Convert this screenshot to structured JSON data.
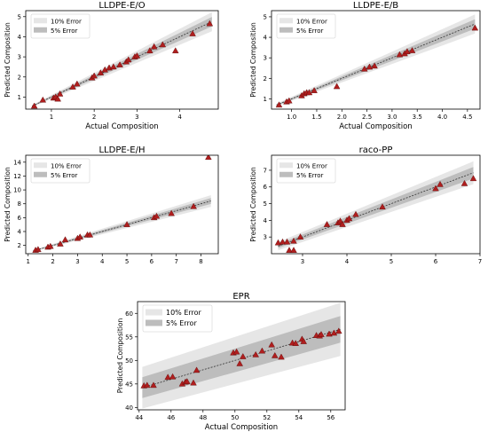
{
  "chart_data": [
    {
      "type": "scatter",
      "title": "LLDPE-E/O",
      "xlabel": "Actual Composition",
      "ylabel": "Predicted Composition",
      "xlim": [
        0.4,
        4.9
      ],
      "ylim": [
        0.4,
        5.3
      ],
      "xticks": [
        1,
        2,
        3,
        4
      ],
      "yticks": [
        1,
        2,
        3,
        4,
        5
      ],
      "band_x": [
        0.55,
        4.75
      ],
      "legend": [
        "10% Error",
        "5% Error"
      ],
      "legend_position": "top-left",
      "points": [
        [
          0.6,
          0.55
        ],
        [
          0.8,
          0.85
        ],
        [
          1.05,
          0.95
        ],
        [
          1.1,
          1.0
        ],
        [
          1.15,
          0.9
        ],
        [
          1.2,
          1.15
        ],
        [
          1.5,
          1.5
        ],
        [
          1.6,
          1.65
        ],
        [
          1.95,
          1.95
        ],
        [
          2.0,
          2.05
        ],
        [
          2.15,
          2.2
        ],
        [
          2.25,
          2.35
        ],
        [
          2.35,
          2.45
        ],
        [
          2.45,
          2.5
        ],
        [
          2.6,
          2.6
        ],
        [
          2.75,
          2.75
        ],
        [
          2.8,
          2.85
        ],
        [
          2.95,
          3.0
        ],
        [
          3.0,
          3.05
        ],
        [
          3.3,
          3.3
        ],
        [
          3.4,
          3.5
        ],
        [
          3.6,
          3.6
        ],
        [
          3.9,
          3.3
        ],
        [
          4.3,
          4.15
        ],
        [
          4.7,
          4.65
        ]
      ]
    },
    {
      "type": "scatter",
      "title": "LLDPE-E/B",
      "xlabel": "Actual Composition",
      "ylabel": "Predicted Composition",
      "xlim": [
        0.6,
        4.75
      ],
      "ylim": [
        0.5,
        5.3
      ],
      "xticks": [
        1.0,
        1.5,
        2.0,
        2.5,
        3.0,
        3.5,
        4.0,
        4.5
      ],
      "yticks": [
        1,
        2,
        3,
        4,
        5
      ],
      "band_x": [
        0.7,
        4.65
      ],
      "legend": [
        "10% Error",
        "5% Error"
      ],
      "legend_position": "top-left",
      "points": [
        [
          0.75,
          0.7
        ],
        [
          0.9,
          0.85
        ],
        [
          0.95,
          0.9
        ],
        [
          1.2,
          1.15
        ],
        [
          1.25,
          1.25
        ],
        [
          1.3,
          1.3
        ],
        [
          1.35,
          1.3
        ],
        [
          1.45,
          1.4
        ],
        [
          1.9,
          1.6
        ],
        [
          2.45,
          2.45
        ],
        [
          2.55,
          2.55
        ],
        [
          2.65,
          2.6
        ],
        [
          3.15,
          3.15
        ],
        [
          3.25,
          3.2
        ],
        [
          3.3,
          3.3
        ],
        [
          3.4,
          3.35
        ],
        [
          4.65,
          4.45
        ]
      ]
    },
    {
      "type": "scatter",
      "title": "LLDPE-E/H",
      "xlabel": "",
      "ylabel": "Predicted Composition",
      "xlim": [
        0.9,
        8.7
      ],
      "ylim": [
        0.8,
        15.0
      ],
      "xticks": [
        1,
        2,
        3,
        4,
        5,
        6,
        7,
        8
      ],
      "yticks": [
        2,
        4,
        6,
        8,
        10,
        12,
        14
      ],
      "band_x": [
        1.2,
        8.4
      ],
      "legend": [
        "10% Error",
        "5% Error"
      ],
      "legend_position": "top-left",
      "points": [
        [
          1.3,
          1.3
        ],
        [
          1.4,
          1.4
        ],
        [
          1.8,
          1.75
        ],
        [
          1.9,
          1.85
        ],
        [
          2.3,
          2.2
        ],
        [
          2.5,
          2.8
        ],
        [
          3.0,
          3.0
        ],
        [
          3.1,
          3.2
        ],
        [
          3.4,
          3.5
        ],
        [
          3.5,
          3.5
        ],
        [
          5.0,
          5.0
        ],
        [
          6.1,
          6.0
        ],
        [
          6.2,
          6.2
        ],
        [
          6.8,
          6.6
        ],
        [
          7.7,
          7.6
        ],
        [
          8.3,
          14.7
        ]
      ]
    },
    {
      "type": "scatter",
      "title": "raco-PP",
      "xlabel": "",
      "ylabel": "Predicted Composition",
      "xlim": [
        2.3,
        7.0
      ],
      "ylim": [
        2.0,
        7.9
      ],
      "xticks": [
        3,
        4,
        5,
        6,
        7
      ],
      "yticks": [
        3,
        4,
        5,
        6,
        7
      ],
      "band_x": [
        2.45,
        6.85
      ],
      "legend": [
        "10% Error",
        "5% Error"
      ],
      "legend_position": "top-left",
      "points": [
        [
          2.45,
          2.65
        ],
        [
          2.55,
          2.7
        ],
        [
          2.65,
          2.7
        ],
        [
          2.7,
          2.2
        ],
        [
          2.8,
          2.75
        ],
        [
          2.8,
          2.2
        ],
        [
          2.95,
          3.0
        ],
        [
          3.55,
          3.75
        ],
        [
          3.8,
          3.85
        ],
        [
          3.85,
          3.95
        ],
        [
          3.9,
          3.75
        ],
        [
          4.0,
          4.0
        ],
        [
          4.05,
          4.1
        ],
        [
          4.2,
          4.35
        ],
        [
          4.8,
          4.8
        ],
        [
          6.0,
          5.9
        ],
        [
          6.1,
          6.15
        ],
        [
          6.65,
          6.2
        ],
        [
          6.85,
          6.5
        ]
      ]
    },
    {
      "type": "scatter",
      "title": "EPR",
      "xlabel": "Actual Composition",
      "ylabel": "Predicted Composition",
      "xlim": [
        43.9,
        56.9
      ],
      "ylim": [
        39.5,
        62.5
      ],
      "xticks": [
        44,
        46,
        48,
        50,
        52,
        54,
        56
      ],
      "yticks": [
        40,
        45,
        50,
        55,
        60
      ],
      "band_x": [
        44.2,
        56.6
      ],
      "legend": [
        "10% Error",
        "5% Error"
      ],
      "legend_position": "top-left",
      "points": [
        [
          44.3,
          44.6
        ],
        [
          44.5,
          44.7
        ],
        [
          44.9,
          44.7
        ],
        [
          45.8,
          46.4
        ],
        [
          46.1,
          46.5
        ],
        [
          46.7,
          45.0
        ],
        [
          46.9,
          45.4
        ],
        [
          47.0,
          45.5
        ],
        [
          47.4,
          45.2
        ],
        [
          47.6,
          47.9
        ],
        [
          49.9,
          51.6
        ],
        [
          50.1,
          51.8
        ],
        [
          50.3,
          49.3
        ],
        [
          50.5,
          50.8
        ],
        [
          51.3,
          51.2
        ],
        [
          51.7,
          52.0
        ],
        [
          52.3,
          53.3
        ],
        [
          52.5,
          51.0
        ],
        [
          52.9,
          50.7
        ],
        [
          53.6,
          53.7
        ],
        [
          53.8,
          53.6
        ],
        [
          54.2,
          54.5
        ],
        [
          54.3,
          54.0
        ],
        [
          55.1,
          55.3
        ],
        [
          55.3,
          55.2
        ],
        [
          55.4,
          55.5
        ],
        [
          55.9,
          55.6
        ],
        [
          56.2,
          55.8
        ],
        [
          56.5,
          56.2
        ]
      ]
    }
  ],
  "colors": {
    "band10": "#e6e6e6",
    "band5": "#bdbdbd",
    "marker_fill": "#b01e1e",
    "marker_edge": "#5a0808",
    "diagonal": "#333333",
    "axis": "#000000"
  }
}
